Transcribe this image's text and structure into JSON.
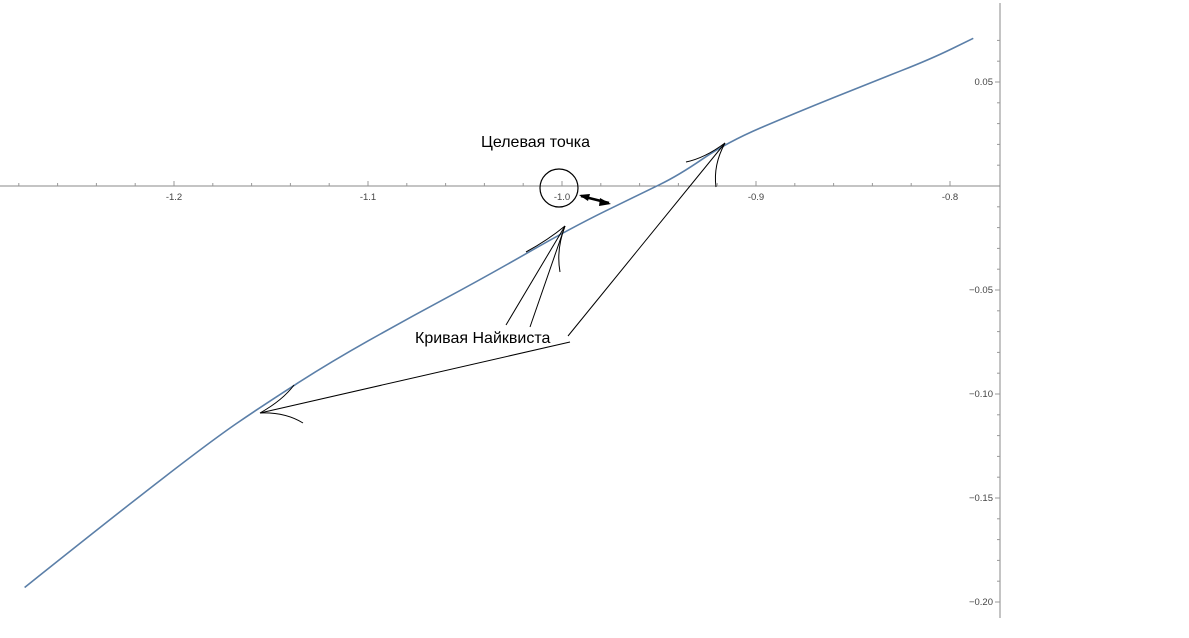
{
  "chart_data": {
    "type": "line",
    "title": "",
    "xlabel": "",
    "ylabel": "",
    "xlim": [
      -1.29,
      -0.78
    ],
    "ylim": [
      -0.2,
      0.07
    ],
    "grid": false,
    "x_ticks": [
      -1.2,
      -1.1,
      -1.0,
      -0.9,
      -0.8
    ],
    "x_tick_labels": [
      "-1.2",
      "-1.1",
      "-1.0",
      "-0.9",
      "-0.8"
    ],
    "y_ticks": [
      0.05,
      -0.05,
      -0.1,
      -0.15,
      -0.2
    ],
    "y_tick_labels": [
      "0.05",
      "−0.05",
      "−0.10",
      "−0.15",
      "−0.20"
    ],
    "series": [
      {
        "color": "#5b7fa8",
        "x": [
          -1.277,
          -1.23,
          -1.18,
          -1.155,
          -1.12,
          -1.08,
          -1.04,
          -0.995,
          -0.96,
          -0.94,
          -0.915,
          -0.88,
          -0.84,
          -0.81,
          -0.788
        ],
        "y": [
          -0.193,
          -0.158,
          -0.122,
          -0.106,
          -0.085,
          -0.064,
          -0.044,
          -0.02,
          -0.004,
          0.005,
          0.021,
          0.035,
          0.05,
          0.061,
          0.071
        ]
      }
    ],
    "target_point": {
      "x": -1.0,
      "y": 0.0
    },
    "annotations": [
      {
        "text": "Целевая точка"
      },
      {
        "text": "Кривая Найквиста"
      }
    ]
  }
}
